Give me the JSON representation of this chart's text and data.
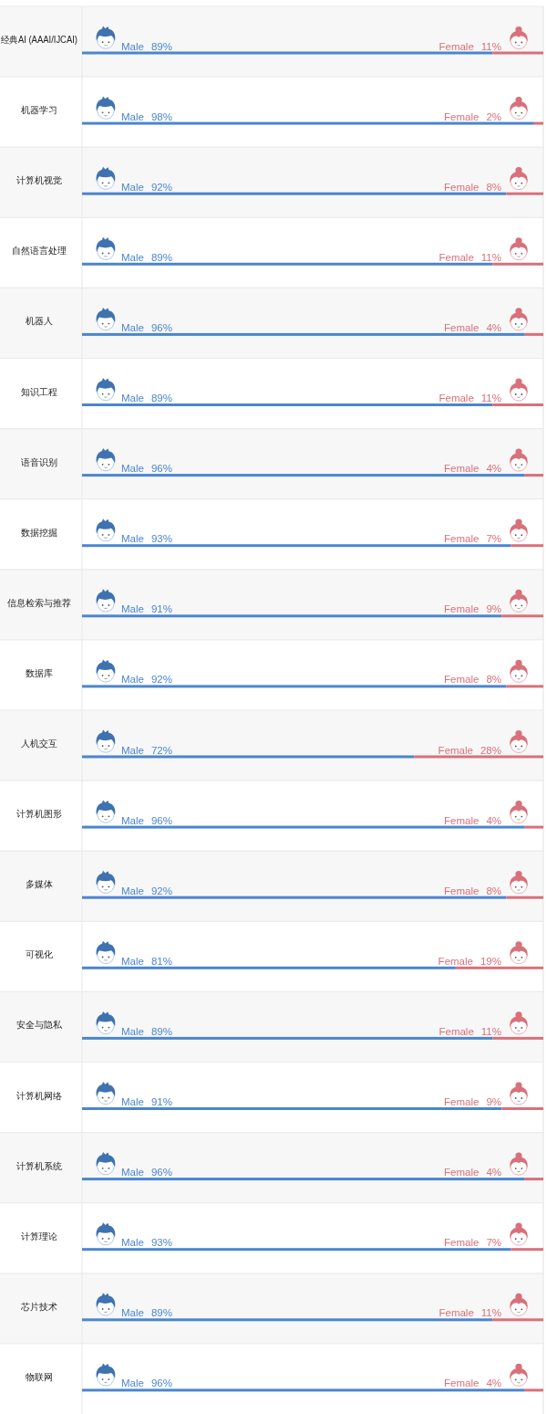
{
  "chart_data": {
    "type": "bar",
    "orientation": "horizontal",
    "stacked": true,
    "tick_labels": "y",
    "xlim": [
      0,
      100
    ],
    "categories": [
      "经典AI (AAAI/IJCAI)",
      "机器学习",
      "计算机视觉",
      "自然语言处理",
      "机器人",
      "知识工程",
      "语音识别",
      "数据挖掘",
      "信息检索与推荐",
      "数据库",
      "人机交互",
      "计算机图形",
      "多媒体",
      "可视化",
      "安全与隐私",
      "计算机网络",
      "计算机系统",
      "计算理论",
      "芯片技术",
      "物联网"
    ],
    "series": [
      {
        "name": "Male",
        "color": "#4a86d0",
        "values": [
          89,
          98,
          92,
          89,
          96,
          89,
          96,
          93,
          91,
          92,
          72,
          96,
          92,
          81,
          89,
          91,
          96,
          93,
          89,
          96
        ],
        "value_labels": [
          "89%",
          "98%",
          "92%",
          "89%",
          "96%",
          "89%",
          "96%",
          "93%",
          "91%",
          "92%",
          "72%",
          "96%",
          "92%",
          "81%",
          "89%",
          "91%",
          "96%",
          "93%",
          "89%",
          "96%"
        ]
      },
      {
        "name": "Female",
        "color": "#d9707a",
        "values": [
          11,
          2,
          8,
          11,
          4,
          11,
          4,
          7,
          9,
          8,
          28,
          4,
          8,
          19,
          11,
          9,
          4,
          7,
          11,
          4
        ],
        "value_labels": [
          "11%",
          "2%",
          "8%",
          "11%",
          "4%",
          "11%",
          "4%",
          "7%",
          "9%",
          "8%",
          "28%",
          "4%",
          "8%",
          "19%",
          "11%",
          "9%",
          "4%",
          "7%",
          "11%",
          "4%"
        ]
      }
    ]
  }
}
